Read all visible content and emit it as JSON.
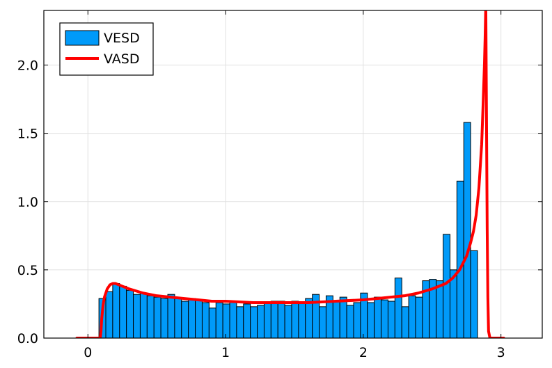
{
  "chart_data": {
    "type": "bar",
    "title": "",
    "xlabel": "",
    "ylabel": "",
    "xlim": [
      -0.32,
      3.3
    ],
    "ylim": [
      0,
      2.4
    ],
    "grid": true,
    "legend_position": "top-left",
    "colors": {
      "hist": "#009af9",
      "curve": "#ff0000",
      "grid": "#e0e0e0",
      "frame": "#000000"
    },
    "xticks": [
      {
        "value": 0,
        "label": "0"
      },
      {
        "value": 1,
        "label": "1"
      },
      {
        "value": 2,
        "label": "2"
      },
      {
        "value": 3,
        "label": "3"
      }
    ],
    "yticks": [
      {
        "value": 0,
        "label": "0.0"
      },
      {
        "value": 0.5,
        "label": "0.5"
      },
      {
        "value": 1.0,
        "label": "1.0"
      },
      {
        "value": 1.5,
        "label": "1.5"
      },
      {
        "value": 2.0,
        "label": "2.0"
      }
    ],
    "series": [
      {
        "name": "VESD",
        "kind": "histogram",
        "bin_start": 0.08,
        "bin_width": 0.05,
        "values": [
          0.29,
          0.34,
          0.4,
          0.38,
          0.35,
          0.32,
          0.33,
          0.31,
          0.3,
          0.29,
          0.32,
          0.29,
          0.27,
          0.29,
          0.28,
          0.26,
          0.22,
          0.26,
          0.25,
          0.27,
          0.23,
          0.25,
          0.23,
          0.24,
          0.26,
          0.27,
          0.27,
          0.24,
          0.27,
          0.26,
          0.29,
          0.32,
          0.23,
          0.31,
          0.27,
          0.3,
          0.24,
          0.26,
          0.33,
          0.26,
          0.3,
          0.28,
          0.27,
          0.44,
          0.23,
          0.31,
          0.3,
          0.42,
          0.43,
          0.42,
          0.76,
          0.5,
          1.15,
          1.58,
          0.64
        ]
      },
      {
        "name": "VASD",
        "kind": "line",
        "x": [
          -0.08,
          0.09,
          0.095,
          0.1,
          0.11,
          0.12,
          0.14,
          0.16,
          0.18,
          0.2,
          0.25,
          0.3,
          0.4,
          0.5,
          0.6,
          0.7,
          0.8,
          0.9,
          1.0,
          1.2,
          1.4,
          1.6,
          1.8,
          2.0,
          2.1,
          2.2,
          2.3,
          2.4,
          2.5,
          2.6,
          2.65,
          2.7,
          2.75,
          2.78,
          2.8,
          2.82,
          2.84,
          2.86,
          2.87,
          2.88,
          2.885,
          2.89,
          2.895,
          2.9,
          2.905,
          2.91,
          2.92,
          3.02
        ],
        "y": [
          0,
          0,
          0.05,
          0.14,
          0.24,
          0.3,
          0.36,
          0.39,
          0.4,
          0.4,
          0.38,
          0.36,
          0.33,
          0.31,
          0.3,
          0.29,
          0.28,
          0.27,
          0.27,
          0.26,
          0.26,
          0.26,
          0.27,
          0.28,
          0.29,
          0.3,
          0.31,
          0.33,
          0.36,
          0.4,
          0.44,
          0.5,
          0.6,
          0.7,
          0.78,
          0.9,
          1.1,
          1.42,
          1.7,
          2.0,
          2.2,
          2.45,
          1.6,
          0.8,
          0.3,
          0.05,
          0,
          0
        ]
      }
    ]
  }
}
